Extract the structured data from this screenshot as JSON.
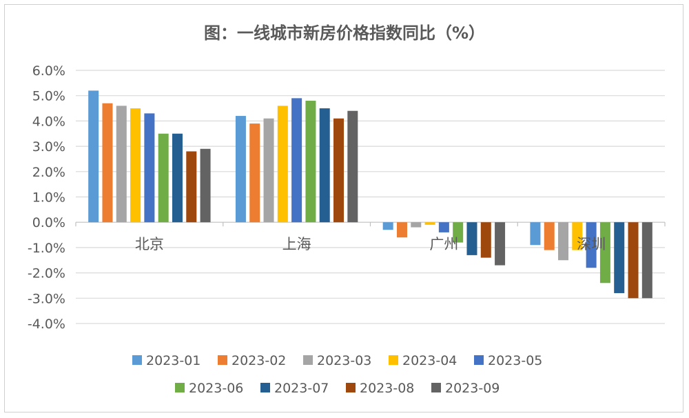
{
  "chart_data": {
    "type": "bar",
    "title": "图：一线城市新房价格指数同比（%）",
    "categories": [
      "北京",
      "上海",
      "广州",
      "深圳"
    ],
    "yticks": [
      "6.0%",
      "5.0%",
      "4.0%",
      "3.0%",
      "2.0%",
      "1.0%",
      "0.0%",
      "-1.0%",
      "-2.0%",
      "-3.0%",
      "-4.0%"
    ],
    "ylim": [
      -4,
      6
    ],
    "grid": true,
    "legend_position": "bottom",
    "series": [
      {
        "name": "2023-01",
        "color": "#5B9BD5",
        "values": [
          5.2,
          4.2,
          -0.3,
          -0.9
        ]
      },
      {
        "name": "2023-02",
        "color": "#ED7D31",
        "values": [
          4.7,
          3.9,
          -0.6,
          -1.1
        ]
      },
      {
        "name": "2023-03",
        "color": "#A5A5A5",
        "values": [
          4.6,
          4.1,
          -0.2,
          -1.5
        ]
      },
      {
        "name": "2023-04",
        "color": "#FFC000",
        "values": [
          4.5,
          4.6,
          -0.1,
          -1.1
        ]
      },
      {
        "name": "2023-05",
        "color": "#4472C4",
        "values": [
          4.3,
          4.9,
          -0.4,
          -1.8
        ]
      },
      {
        "name": "2023-06",
        "color": "#70AD47",
        "values": [
          3.5,
          4.8,
          -0.8,
          -2.4
        ]
      },
      {
        "name": "2023-07",
        "color": "#255E91",
        "values": [
          3.5,
          4.5,
          -1.3,
          -2.8
        ]
      },
      {
        "name": "2023-08",
        "color": "#9E480E",
        "values": [
          2.8,
          4.1,
          -1.4,
          -3.0
        ]
      },
      {
        "name": "2023-09",
        "color": "#636363",
        "values": [
          2.9,
          4.4,
          -1.7,
          -3.0
        ]
      }
    ]
  }
}
